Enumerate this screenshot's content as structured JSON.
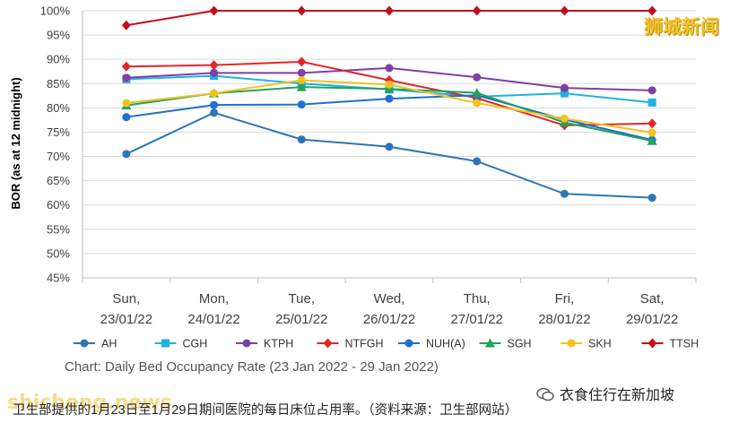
{
  "chart_data": {
    "type": "line",
    "categories": [
      [
        "Sun,",
        "23/01/22"
      ],
      [
        "Mon,",
        "24/01/22"
      ],
      [
        "Tue,",
        "25/01/22"
      ],
      [
        "Wed,",
        "26/01/22"
      ],
      [
        "Thu,",
        "27/01/22"
      ],
      [
        "Fri,",
        "28/01/22"
      ],
      [
        "Sat,",
        "29/01/22"
      ]
    ],
    "ylabel": "BOR (as at 12 midnight)",
    "ylim": [
      45,
      100
    ],
    "yticks": [
      45,
      50,
      55,
      60,
      65,
      70,
      75,
      80,
      85,
      90,
      95,
      100
    ],
    "ytick_labels": [
      "45%",
      "50%",
      "55%",
      "60%",
      "65%",
      "70%",
      "75%",
      "80%",
      "85%",
      "90%",
      "95%",
      "100%"
    ],
    "grid": "horizontal",
    "legend_position": "bottom",
    "caption": "Chart: Daily Bed Occupancy Rate (23 Jan 2022 - 29 Jan 2022)",
    "series": [
      {
        "name": "AH",
        "color": "#2e75b6",
        "marker": "circle",
        "values": [
          70.5,
          79.0,
          73.5,
          72.0,
          69.0,
          62.3,
          61.5
        ]
      },
      {
        "name": "CGH",
        "color": "#1fb2e0",
        "marker": "square",
        "values": [
          85.9,
          86.6,
          85.0,
          83.8,
          82.3,
          83.0,
          81.1
        ]
      },
      {
        "name": "KTPH",
        "color": "#7f3fa3",
        "marker": "circle",
        "values": [
          86.2,
          87.2,
          87.2,
          88.2,
          86.3,
          84.1,
          83.6
        ]
      },
      {
        "name": "NTFGH",
        "color": "#e3262a",
        "marker": "diamond",
        "values": [
          88.5,
          88.8,
          89.5,
          85.7,
          82.0,
          76.4,
          76.8
        ]
      },
      {
        "name": "NUH(A)",
        "color": "#1f6fd1",
        "marker": "circle",
        "values": [
          78.1,
          80.6,
          80.7,
          81.9,
          82.6,
          77.6,
          73.4
        ]
      },
      {
        "name": "SGH",
        "color": "#20a35a",
        "marker": "triangle",
        "values": [
          80.5,
          83.0,
          84.3,
          83.9,
          83.1,
          77.0,
          73.2
        ]
      },
      {
        "name": "SKH",
        "color": "#f3c21d",
        "marker": "circle",
        "values": [
          81.0,
          83.0,
          85.7,
          84.8,
          81.0,
          77.8,
          74.9
        ]
      },
      {
        "name": "TTSH",
        "color": "#c0101a",
        "marker": "diamond",
        "values": [
          97.0,
          100.0,
          100.0,
          100.0,
          100.0,
          100.0,
          100.0
        ]
      }
    ]
  },
  "watermarks": {
    "top_right": "狮城新闻",
    "bottom_left": "shicheng.news",
    "bottom_right": "衣食住行在新加坡"
  },
  "footnote": "卫生部提供的1月23日至1月29日期间医院的每日床位占用率。（资料来源：卫生部网站）"
}
